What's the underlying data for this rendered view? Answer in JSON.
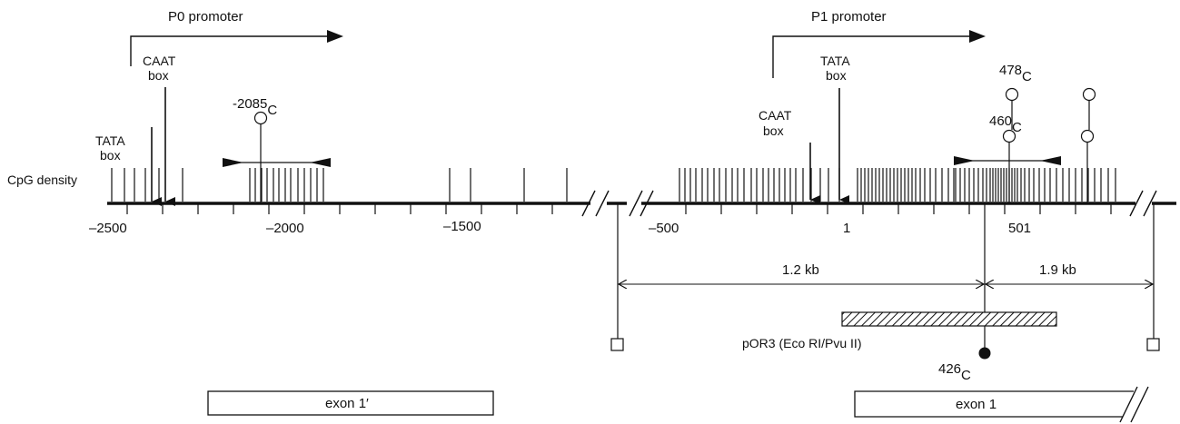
{
  "promoters": {
    "p0": "P0 promoter",
    "p1": "P1 promoter"
  },
  "boxes": {
    "tata_left_l1": "TATA",
    "tata_left_l2": "box",
    "caat_left_l1": "CAAT",
    "caat_left_l2": "box",
    "caat_right_l1": "CAAT",
    "caat_right_l2": "box",
    "tata_right_l1": "TATA",
    "tata_right_l2": "box"
  },
  "cpg_label": "CpG density",
  "axis_ticks": [
    "–2500",
    "–2000",
    "–1500",
    "–500",
    "1",
    "501"
  ],
  "sites": {
    "s2085": {
      "num": "-2085",
      "sub": "C"
    },
    "s460": {
      "num": "460",
      "sub": "C"
    },
    "s478": {
      "num": "478",
      "sub": "C"
    },
    "s426": {
      "num": "426",
      "sub": "C"
    }
  },
  "distances": {
    "d1": "1.2 kb",
    "d2": "1.9 kb"
  },
  "probe_label": "pOR3 (Eco RI/Pvu II)",
  "exons": {
    "exon1p": "exon 1′",
    "exon1": "exon 1"
  },
  "colors": {
    "ink": "#111111",
    "background": "#ffffff"
  }
}
